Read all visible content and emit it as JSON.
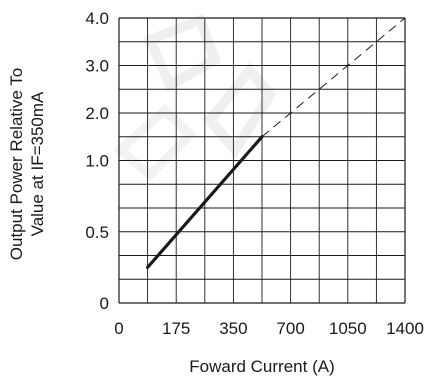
{
  "chart_data": {
    "type": "line",
    "title": "",
    "xlabel": "Foward Current (A)",
    "ylabel_lines": [
      "Output Power Relative To",
      "Value at IF=350mA"
    ],
    "x_tick_labels": [
      "0",
      "175",
      "350",
      "700",
      "1050",
      "1400"
    ],
    "y_tick_labels": [
      "0",
      "0.5",
      "1.0",
      "2.0",
      "3.0",
      "4.0"
    ],
    "grid": true,
    "grid_columns": 10,
    "grid_rows": 12,
    "series": [
      {
        "style": "solid",
        "points": [
          [
            0.1,
            0.25
          ],
          [
            0.5,
            1.5
          ]
        ]
      },
      {
        "style": "dashed",
        "points": [
          [
            0.5,
            1.5
          ],
          [
            1.0,
            4.0
          ]
        ]
      }
    ],
    "colors": {
      "grid": "#1a1a1a",
      "line": "#1a1a1a",
      "watermark": "#e8e8e8"
    }
  }
}
